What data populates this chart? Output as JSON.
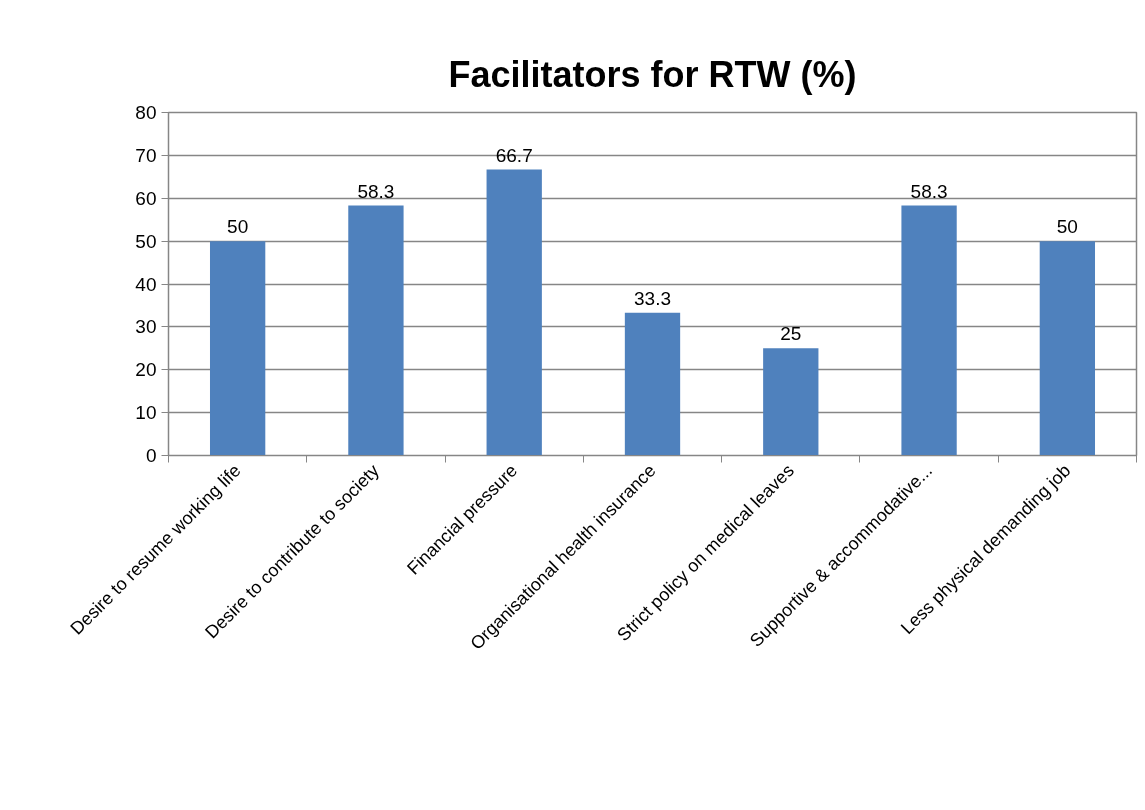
{
  "chart_data": {
    "type": "bar",
    "title": "Facilitators for RTW (%)",
    "categories": [
      "Desire to resume working life",
      "Desire to contribute to society",
      "Financial pressure",
      "Organisational health insurance",
      "Strict policy on medical leaves",
      "Supportive & accommodative...",
      "Less physical demanding job"
    ],
    "values": [
      50,
      58.3,
      66.7,
      33.3,
      25,
      58.3,
      50
    ],
    "color": "#4f81bd",
    "ylim": [
      0,
      80
    ],
    "yticks": [
      0,
      10,
      20,
      30,
      40,
      50,
      60,
      70,
      80
    ],
    "grid": "y",
    "data_labels": true
  }
}
